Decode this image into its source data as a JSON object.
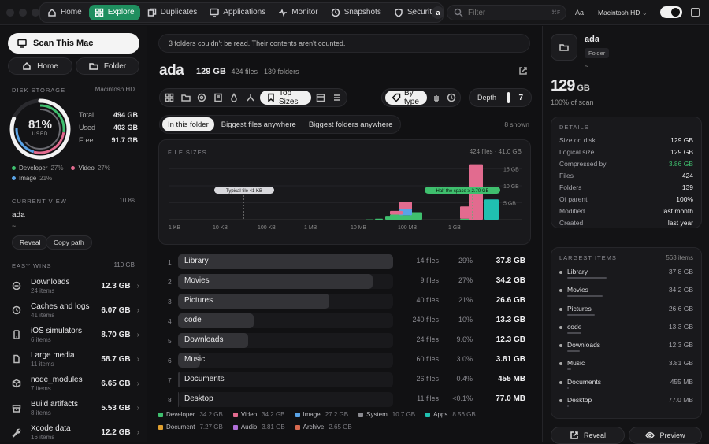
{
  "nav": {
    "items": [
      {
        "label": "Home",
        "icon": "home-icon"
      },
      {
        "label": "Explore",
        "icon": "compass-icon"
      },
      {
        "label": "Duplicates",
        "icon": "duplicates-icon"
      },
      {
        "label": "Applications",
        "icon": "monitor-icon"
      },
      {
        "label": "Monitor",
        "icon": "activity-icon"
      },
      {
        "label": "Snapshots",
        "icon": "history-icon"
      },
      {
        "label": "Security",
        "icon": "shield-icon"
      }
    ],
    "active": "Explore",
    "avatar": "a",
    "filter_placeholder": "Filter",
    "filter_kbd": "⌘F",
    "text_size": "Aa",
    "disk": "Macintosh HD",
    "toggle": "on"
  },
  "sidebar": {
    "scan_label": "Scan This Mac",
    "home_label": "Home",
    "folder_label": "Folder",
    "disk_storage_label": "DISK STORAGE",
    "disk_name": "Macintosh HD",
    "ring_percent": "81%",
    "ring_used": "USED",
    "used_fraction": 0.81,
    "stats": [
      {
        "label": "Total",
        "value": "494 GB"
      },
      {
        "label": "Used",
        "value": "403 GB"
      },
      {
        "label": "Free",
        "value": "91.7 GB"
      }
    ],
    "breakdown": [
      {
        "name": "Developer",
        "value": "27%",
        "color": "#3fbf6e"
      },
      {
        "name": "Video",
        "value": "27%",
        "color": "#e26b8f"
      },
      {
        "name": "Image",
        "value": "21%",
        "color": "#5aa3e6"
      }
    ],
    "current_view_label": "CURRENT VIEW",
    "current_view_time": "10.8s",
    "current_view_name": "ada",
    "current_view_path": "~",
    "reveal_label": "Reveal",
    "copy_path_label": "Copy path",
    "easy_wins_label": "EASY WINS",
    "easy_wins_total": "110 GB",
    "wins": [
      {
        "name": "Downloads",
        "count": "24 items",
        "size": "12.3 GB",
        "icon": "download-icon"
      },
      {
        "name": "Caches and logs",
        "count": "41 items",
        "size": "6.07 GB",
        "icon": "clock-icon"
      },
      {
        "name": "iOS simulators",
        "count": "6 items",
        "size": "8.70 GB",
        "icon": "phone-icon"
      },
      {
        "name": "Large media",
        "count": "11 items",
        "size": "58.7 GB",
        "icon": "file-icon"
      },
      {
        "name": "node_modules",
        "count": "7 items",
        "size": "6.65 GB",
        "icon": "package-icon"
      },
      {
        "name": "Build artifacts",
        "count": "8 items",
        "size": "5.53 GB",
        "icon": "archive-icon"
      },
      {
        "name": "Xcode data",
        "count": "16 items",
        "size": "12.2 GB",
        "icon": "wrench-icon"
      }
    ]
  },
  "main": {
    "notice": "3 folders couldn't be read. Their contents aren't counted.",
    "folder_name": "ada",
    "folder_size": "129 GB",
    "files_count": "424 files",
    "folders_count": "139 folders",
    "by_type_label": "By type",
    "top_sizes_label": "Top Sizes",
    "depth_label": "Depth",
    "depth_value": "7",
    "tabs": [
      "In this folder",
      "Biggest files anywhere",
      "Biggest folders anywhere"
    ],
    "shown": "8 shown",
    "rows": [
      {
        "idx": "1",
        "name": "Library",
        "files": "14 files",
        "pct": "29%",
        "size": "37.8 GB",
        "frac": 1.0
      },
      {
        "idx": "2",
        "name": "Movies",
        "files": "9 files",
        "pct": "27%",
        "size": "34.2 GB",
        "frac": 0.905
      },
      {
        "idx": "3",
        "name": "Pictures",
        "files": "40 files",
        "pct": "21%",
        "size": "26.6 GB",
        "frac": 0.704
      },
      {
        "idx": "4",
        "name": "code",
        "files": "240 files",
        "pct": "10%",
        "size": "13.3 GB",
        "frac": 0.352
      },
      {
        "idx": "5",
        "name": "Downloads",
        "files": "24 files",
        "pct": "9.6%",
        "size": "12.3 GB",
        "frac": 0.325
      },
      {
        "idx": "6",
        "name": "Music",
        "files": "60 files",
        "pct": "3.0%",
        "size": "3.81 GB",
        "frac": 0.101
      },
      {
        "idx": "7",
        "name": "Documents",
        "files": "26 files",
        "pct": "0.4%",
        "size": "455 MB",
        "frac": 0.012
      },
      {
        "idx": "8",
        "name": "Desktop",
        "files": "11 files",
        "pct": "<0.1%",
        "size": "77.0 MB",
        "frac": 0.002
      }
    ],
    "legend": [
      {
        "name": "Developer",
        "value": "34.2 GB",
        "color": "#3fbf6e"
      },
      {
        "name": "Video",
        "value": "34.2 GB",
        "color": "#e26b8f"
      },
      {
        "name": "Image",
        "value": "27.2 GB",
        "color": "#5aa3e6"
      },
      {
        "name": "System",
        "value": "10.7 GB",
        "color": "#8a8a90"
      },
      {
        "name": "Apps",
        "value": "8.56 GB",
        "color": "#20c0b0"
      },
      {
        "name": "Document",
        "value": "7.27 GB",
        "color": "#e0a030"
      },
      {
        "name": "Audio",
        "value": "3.81 GB",
        "color": "#b070d8"
      },
      {
        "name": "Archive",
        "value": "2.65 GB",
        "color": "#d86a50"
      }
    ]
  },
  "chart_data": {
    "type": "bar",
    "title": "FILE SIZES",
    "summary": "424 files · 41.0 GB",
    "x_ticks": [
      "1 KB",
      "10 KB",
      "100 KB",
      "1 MB",
      "10 MB",
      "100 MB",
      "1 GB"
    ],
    "y_ticks": [
      "15 GB",
      "10 GB",
      "5 GB"
    ],
    "ylim": [
      0,
      17
    ],
    "annotations": [
      {
        "label": "Typical file 41 KB",
        "x": "41 KB"
      },
      {
        "label": "Half the space ≥ 2.70 GB",
        "x": "2.70 GB"
      }
    ],
    "series": [
      {
        "name": "Developer",
        "color": "#3fbf6e",
        "values": [
          0,
          0,
          0,
          0.1,
          0.3,
          0.9,
          1.5,
          1.3,
          2.2,
          0.3,
          0,
          0
        ]
      },
      {
        "name": "Image",
        "color": "#5aa3e6",
        "values": [
          0,
          0,
          0,
          0,
          0,
          0,
          0,
          1.8,
          0,
          0,
          0,
          0
        ]
      },
      {
        "name": "Video",
        "color": "#e26b8f",
        "values": [
          0,
          0,
          0,
          0,
          0,
          0,
          1.1,
          2.2,
          0,
          3.6,
          16.4,
          0
        ]
      },
      {
        "name": "Apps",
        "color": "#20c0b0",
        "values": [
          0,
          0,
          0,
          0,
          0,
          0,
          0,
          0,
          0,
          0,
          0,
          6.0
        ]
      }
    ],
    "bins": [
      "2 MB",
      "5 MB",
      "10 MB",
      "20 MB",
      "50 MB",
      "100 MB",
      "200 MB",
      "300 MB",
      "500 MB",
      "1 GB",
      "2 GB",
      "5 GB"
    ]
  },
  "right": {
    "name": "ada",
    "type_label": "Folder",
    "path": "~",
    "size_num": "129",
    "size_unit": "GB",
    "scan_pct": "100% of scan",
    "details_label": "DETAILS",
    "details": [
      {
        "k": "Size on disk",
        "v": "129 GB"
      },
      {
        "k": "Logical size",
        "v": "129 GB"
      },
      {
        "k": "Compressed by",
        "v": "3.86 GB",
        "green": true
      },
      {
        "k": "Files",
        "v": "424"
      },
      {
        "k": "Folders",
        "v": "139"
      },
      {
        "k": "Of parent",
        "v": "100%"
      },
      {
        "k": "Modified",
        "v": "last month"
      },
      {
        "k": "Created",
        "v": "last year"
      }
    ],
    "largest_label": "LARGEST ITEMS",
    "largest_count": "563 items",
    "largest": [
      {
        "name": "Library",
        "size": "37.8 GB",
        "frac": 1.0
      },
      {
        "name": "Movies",
        "size": "34.2 GB",
        "frac": 0.905
      },
      {
        "name": "Pictures",
        "size": "26.6 GB",
        "frac": 0.704
      },
      {
        "name": "code",
        "size": "13.3 GB",
        "frac": 0.352
      },
      {
        "name": "Downloads",
        "size": "12.3 GB",
        "frac": 0.325
      },
      {
        "name": "Music",
        "size": "3.81 GB",
        "frac": 0.101
      },
      {
        "name": "Documents",
        "size": "455 MB",
        "frac": 0.012
      },
      {
        "name": "Desktop",
        "size": "77.0 MB",
        "frac": 0.002
      }
    ],
    "reveal_label": "Reveal",
    "preview_label": "Preview"
  }
}
